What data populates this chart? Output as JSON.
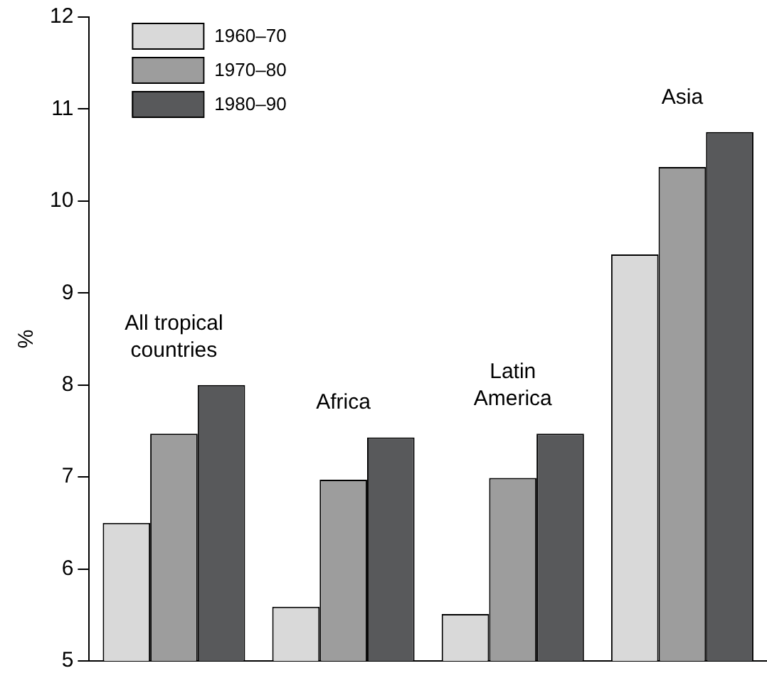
{
  "chart_data": {
    "type": "bar",
    "ylabel": "%",
    "categories": [
      "All tropical countries",
      "Africa",
      "Latin America",
      "Asia"
    ],
    "series": [
      {
        "name": "1960–70",
        "color": "#d9d9d9",
        "values": [
          6.5,
          5.59,
          5.51,
          9.42
        ]
      },
      {
        "name": "1970–80",
        "color": "#9d9d9d",
        "values": [
          7.47,
          6.97,
          6.99,
          10.37
        ]
      },
      {
        "name": "1980–90",
        "color": "#58595b",
        "values": [
          8.0,
          7.43,
          7.47,
          10.75
        ]
      }
    ],
    "ylim": [
      5,
      12
    ],
    "yticks": [
      5,
      6,
      7,
      8,
      9,
      10,
      11,
      12
    ],
    "grid": false,
    "legend": "top left"
  }
}
